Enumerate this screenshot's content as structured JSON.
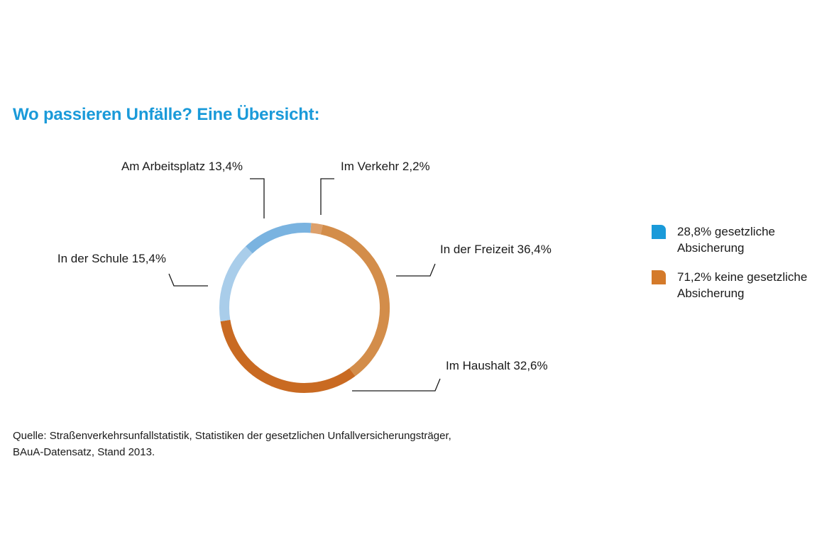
{
  "title": "Wo passieren Unfälle? Eine Übersicht:",
  "chart_data": {
    "type": "pie",
    "donut": true,
    "slices": [
      {
        "label": "Im Verkehr 2,2%",
        "value": 2.2,
        "color": "#dda06b"
      },
      {
        "label": "In der Freizeit 36,4%",
        "value": 36.4,
        "color": "#d38d4a"
      },
      {
        "label": "Im Haushalt 32,6%",
        "value": 32.6,
        "color": "#c96a22"
      },
      {
        "label": "In der Schule 15,4%",
        "value": 15.4,
        "color": "#a9cdea"
      },
      {
        "label": "Am Arbeitsplatz 13,4%",
        "value": 13.4,
        "color": "#7ab3e0"
      }
    ]
  },
  "legend": [
    {
      "text": "28,8% gesetzliche Absicherung",
      "color": "#1a9ad9"
    },
    {
      "text": "71,2% keine gesetzliche Absicherung",
      "color": "#d47a2a"
    }
  ],
  "source": {
    "line1": "Quelle: Straßenverkehrsunfallstatistik, Statistiken der gesetzlichen Unfallversicherungsträger,",
    "line2": "BAuA-Datensatz, Stand 2013."
  }
}
